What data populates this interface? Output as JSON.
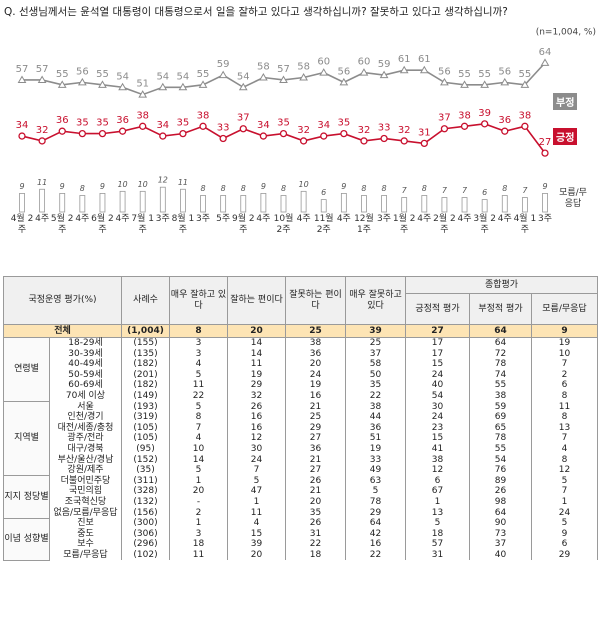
{
  "chart_data": {
    "type": "line",
    "title": "Q. 선생님께서는 윤석열 대통령이 대통령으로서 일을 잘하고 있다고 생각하십니까? 잘못하고 있다고 생각하십니까?",
    "note": "(n=1,004, %)",
    "categories": [
      "4월 2주",
      "4주",
      "5월 2주",
      "4주",
      "6월 2주",
      "4주",
      "7월 1주",
      "3주",
      "8월 1주",
      "3주",
      "5주",
      "9월 2주",
      "4주",
      "10월 2주",
      "4주",
      "11월 2주",
      "4주",
      "12월 1주",
      "3주",
      "1월 2주",
      "4주",
      "2월 2주",
      "4주",
      "3월 2주",
      "4주",
      "4월 1주",
      "3주"
    ],
    "ylim": [
      25,
      66
    ],
    "y2lim": [
      0,
      30
    ],
    "series": [
      {
        "name": "부정",
        "color": "#8c8c8c",
        "marker": "triangle",
        "values": [
          57,
          57,
          55,
          56,
          55,
          54,
          51,
          54,
          54,
          55,
          59,
          54,
          58,
          57,
          58,
          60,
          56,
          60,
          59,
          61,
          61,
          56,
          55,
          55,
          56,
          55,
          64
        ]
      },
      {
        "name": "긍정",
        "color": "#c8102e",
        "marker": "circle",
        "values": [
          34,
          32,
          36,
          35,
          35,
          36,
          38,
          34,
          35,
          38,
          33,
          37,
          34,
          35,
          32,
          34,
          35,
          32,
          33,
          32,
          31,
          37,
          38,
          39,
          36,
          38,
          27
        ]
      },
      {
        "name": "모름/무응답",
        "type": "bar",
        "axis": "y2",
        "color": "#ffffff",
        "values": [
          9,
          11,
          9,
          8,
          9,
          10,
          10,
          12,
          11,
          8,
          8,
          8,
          9,
          8,
          10,
          6,
          9,
          8,
          8,
          7,
          8,
          7,
          7,
          6,
          8,
          7,
          9
        ]
      }
    ]
  },
  "table": {
    "corner": "국정운영 평가(%)",
    "headers": [
      "사례수",
      "매우 잘하고 있다",
      "잘하는 편이다",
      "잘못하는 편이다",
      "매우 잘못하고 있다"
    ],
    "group_header": "종합평가",
    "group_columns": [
      "긍정적 평가",
      "부정적 평가",
      "모름/무응답"
    ],
    "total": [
      "전체",
      "(1,004)",
      8,
      20,
      25,
      39,
      27,
      64,
      9
    ],
    "groups": [
      {
        "name": "연령별",
        "rows": [
          [
            "18-29세",
            "(155)",
            3,
            14,
            38,
            25,
            17,
            64,
            19
          ],
          [
            "30-39세",
            "(135)",
            3,
            14,
            36,
            37,
            17,
            72,
            10
          ],
          [
            "40-49세",
            "(182)",
            4,
            11,
            20,
            58,
            15,
            78,
            7
          ],
          [
            "50-59세",
            "(201)",
            5,
            19,
            24,
            50,
            24,
            74,
            2
          ],
          [
            "60-69세",
            "(182)",
            11,
            29,
            19,
            35,
            40,
            55,
            6
          ],
          [
            "70세 이상",
            "(149)",
            22,
            32,
            16,
            22,
            54,
            38,
            8
          ]
        ]
      },
      {
        "name": "지역별",
        "rows": [
          [
            "서울",
            "(193)",
            5,
            26,
            21,
            38,
            30,
            59,
            11
          ],
          [
            "인천/경기",
            "(319)",
            8,
            16,
            25,
            44,
            24,
            69,
            8
          ],
          [
            "대전/세종/충청",
            "(105)",
            7,
            16,
            29,
            36,
            23,
            65,
            13
          ],
          [
            "광주/전라",
            "(105)",
            4,
            12,
            27,
            51,
            15,
            78,
            7
          ],
          [
            "대구/경북",
            "(95)",
            10,
            30,
            36,
            19,
            41,
            55,
            4
          ],
          [
            "부산/울산/경남",
            "(152)",
            14,
            24,
            21,
            33,
            38,
            54,
            8
          ],
          [
            "강원/제주",
            "(35)",
            5,
            7,
            27,
            49,
            12,
            76,
            12
          ]
        ]
      },
      {
        "name": "지지 정당별",
        "rows": [
          [
            "더불어민주당",
            "(311)",
            1,
            5,
            26,
            63,
            6,
            89,
            5
          ],
          [
            "국민의힘",
            "(328)",
            20,
            47,
            21,
            5,
            67,
            26,
            7
          ],
          [
            "조국혁신당",
            "(132)",
            "-",
            1,
            20,
            78,
            1,
            98,
            1
          ],
          [
            "없음/모름/무응답",
            "(156)",
            2,
            11,
            35,
            29,
            13,
            64,
            24
          ]
        ]
      },
      {
        "name": "이념 성향별",
        "rows": [
          [
            "진보",
            "(300)",
            1,
            4,
            26,
            64,
            5,
            90,
            5
          ],
          [
            "중도",
            "(306)",
            3,
            15,
            31,
            42,
            18,
            73,
            9
          ],
          [
            "보수",
            "(296)",
            18,
            39,
            22,
            16,
            57,
            37,
            6
          ],
          [
            "모름/무응답",
            "(102)",
            11,
            20,
            18,
            22,
            31,
            40,
            29
          ]
        ]
      }
    ]
  }
}
